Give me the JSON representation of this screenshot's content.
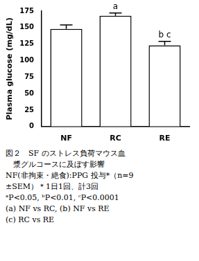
{
  "chart_data": {
    "type": "bar",
    "categories": [
      "NF",
      "RC",
      "RE"
    ],
    "values": [
      148,
      168,
      123
    ],
    "errors": [
      6,
      4,
      6
    ],
    "significance": [
      null,
      "a",
      "b c"
    ],
    "color": "#ffffff",
    "y_label": "Plasma glucose (mg/dL)",
    "ylim": [
      0,
      175
    ],
    "yticks": [
      0,
      25,
      50,
      75,
      100,
      125,
      150,
      175
    ],
    "grid": false,
    "caption": [
      "図２　SF のストレス負荷マウス血",
      "　漿グルコースに及ぼす影響",
      "NF(非拘束・絶食):PPG 投与*（n=9",
      "±SEM）＊1日1回、計3回",
      "ᵃP<0.05, ᵇP<0.01, ᶜP<0.0001",
      "(a) NF vs RC, (b) NF vs RE",
      "(c) RC vs RE"
    ]
  }
}
